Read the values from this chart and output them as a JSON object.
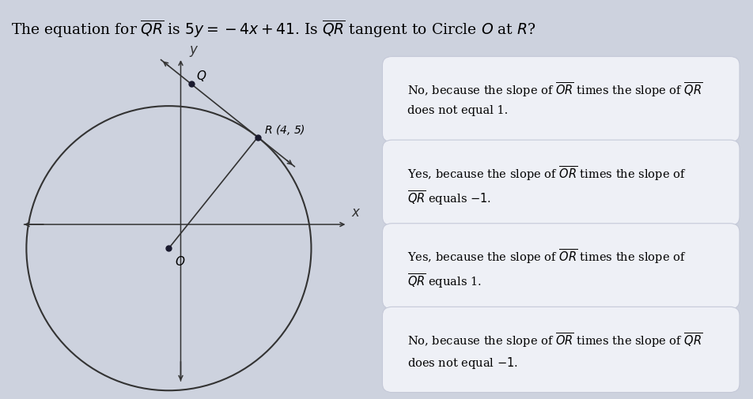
{
  "title_text": "The equation for $\\overline{QR}$ is $5y = -4x + 41$. Is $\\overline{QR}$ tangent to Circle $O$ at $R$?",
  "title_bg": "#cdd2de",
  "left_bg": "#d4d9e4",
  "right_bg": "#5577bb",
  "option_bg": "#eef0f6",
  "option_border": "#c5c9d8",
  "options": [
    {
      "line1": "No, because the slope of $\\overline{OR}$ times the slope of $\\overline{QR}$",
      "line2": "does not equal 1."
    },
    {
      "line1": "Yes, because the slope of $\\overline{OR}$ times the slope of",
      "line2": "$\\overline{QR}$ equals $-1$."
    },
    {
      "line1": "Yes, because the slope of $\\overline{OR}$ times the slope of",
      "line2": "$\\overline{QR}$ equals 1."
    },
    {
      "line1": "No, because the slope of $\\overline{OR}$ times the slope of $\\overline{QR}$",
      "line2": "does not equal $-1$."
    }
  ],
  "axis_color": "#333333",
  "line_color": "#333333",
  "dot_color": "#1a1a2e"
}
